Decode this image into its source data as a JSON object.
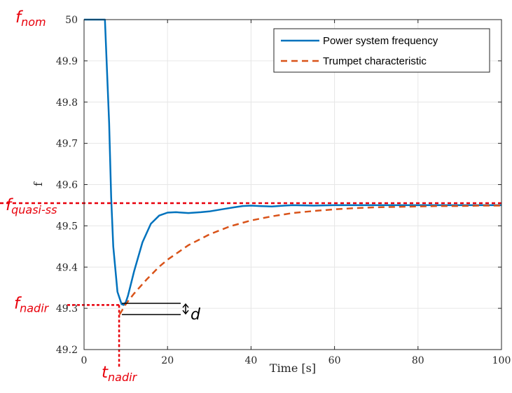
{
  "chart_data": {
    "type": "line",
    "xlabel": "Time [s]",
    "ylabel": "f",
    "xlim": [
      0,
      100
    ],
    "ylim": [
      49.2,
      50
    ],
    "xticks": [
      "0",
      "20",
      "40",
      "60",
      "80",
      "100"
    ],
    "yticks": [
      "49.2",
      "49.3",
      "49.4",
      "49.5",
      "49.6",
      "49.7",
      "49.8",
      "49.9",
      "50"
    ],
    "grid": true,
    "legend_position": "top-right",
    "series": [
      {
        "name": "Power system frequency",
        "color": "#0072bd",
        "style": "solid",
        "x": [
          0,
          5,
          6,
          6.5,
          7,
          8,
          9,
          9.5,
          10,
          10.5,
          11,
          12,
          14,
          16,
          18,
          20,
          22,
          25,
          28,
          30,
          33,
          36,
          38,
          40,
          42,
          45,
          48,
          50,
          55,
          60,
          70,
          80,
          90,
          100
        ],
        "y": [
          50,
          50,
          49.75,
          49.57,
          49.45,
          49.34,
          49.31,
          49.308,
          49.315,
          49.33,
          49.35,
          49.39,
          49.46,
          49.505,
          49.525,
          49.532,
          49.533,
          49.531,
          49.533,
          49.535,
          49.54,
          49.545,
          49.548,
          49.549,
          49.548,
          49.547,
          49.549,
          49.55,
          49.549,
          49.55,
          49.55,
          49.55,
          49.55,
          49.55
        ]
      },
      {
        "name": "Trumpet characteristic",
        "color": "#d95319",
        "style": "dashed",
        "x": [
          8.5,
          10,
          12,
          15,
          18,
          20,
          25,
          30,
          35,
          40,
          45,
          50,
          55,
          60,
          65,
          70,
          75,
          80,
          85,
          90,
          95,
          100
        ],
        "y": [
          49.285,
          49.31,
          49.336,
          49.37,
          49.401,
          49.418,
          49.453,
          49.479,
          49.499,
          49.513,
          49.523,
          49.531,
          49.536,
          49.54,
          49.543,
          49.545,
          49.546,
          49.547,
          49.548,
          49.548,
          49.549,
          49.549
        ]
      }
    ]
  },
  "annotations": {
    "f_nom": {
      "main": "f",
      "sub": "nom",
      "value_y": 50
    },
    "f_quasi_ss": {
      "main": "f",
      "sub": "quasi-ss",
      "value_y": 49.555
    },
    "f_nadir": {
      "main": "f",
      "sub": "nadir",
      "value_y": 49.308
    },
    "t_nadir": {
      "main": "t",
      "sub": "nadir",
      "value_x": 8.4
    },
    "d": "d",
    "d_lines_y": [
      49.312,
      49.285
    ]
  },
  "colors": {
    "annotation_red": "#e8000b",
    "axes": "#262626",
    "grid": "#e6e6e6"
  }
}
